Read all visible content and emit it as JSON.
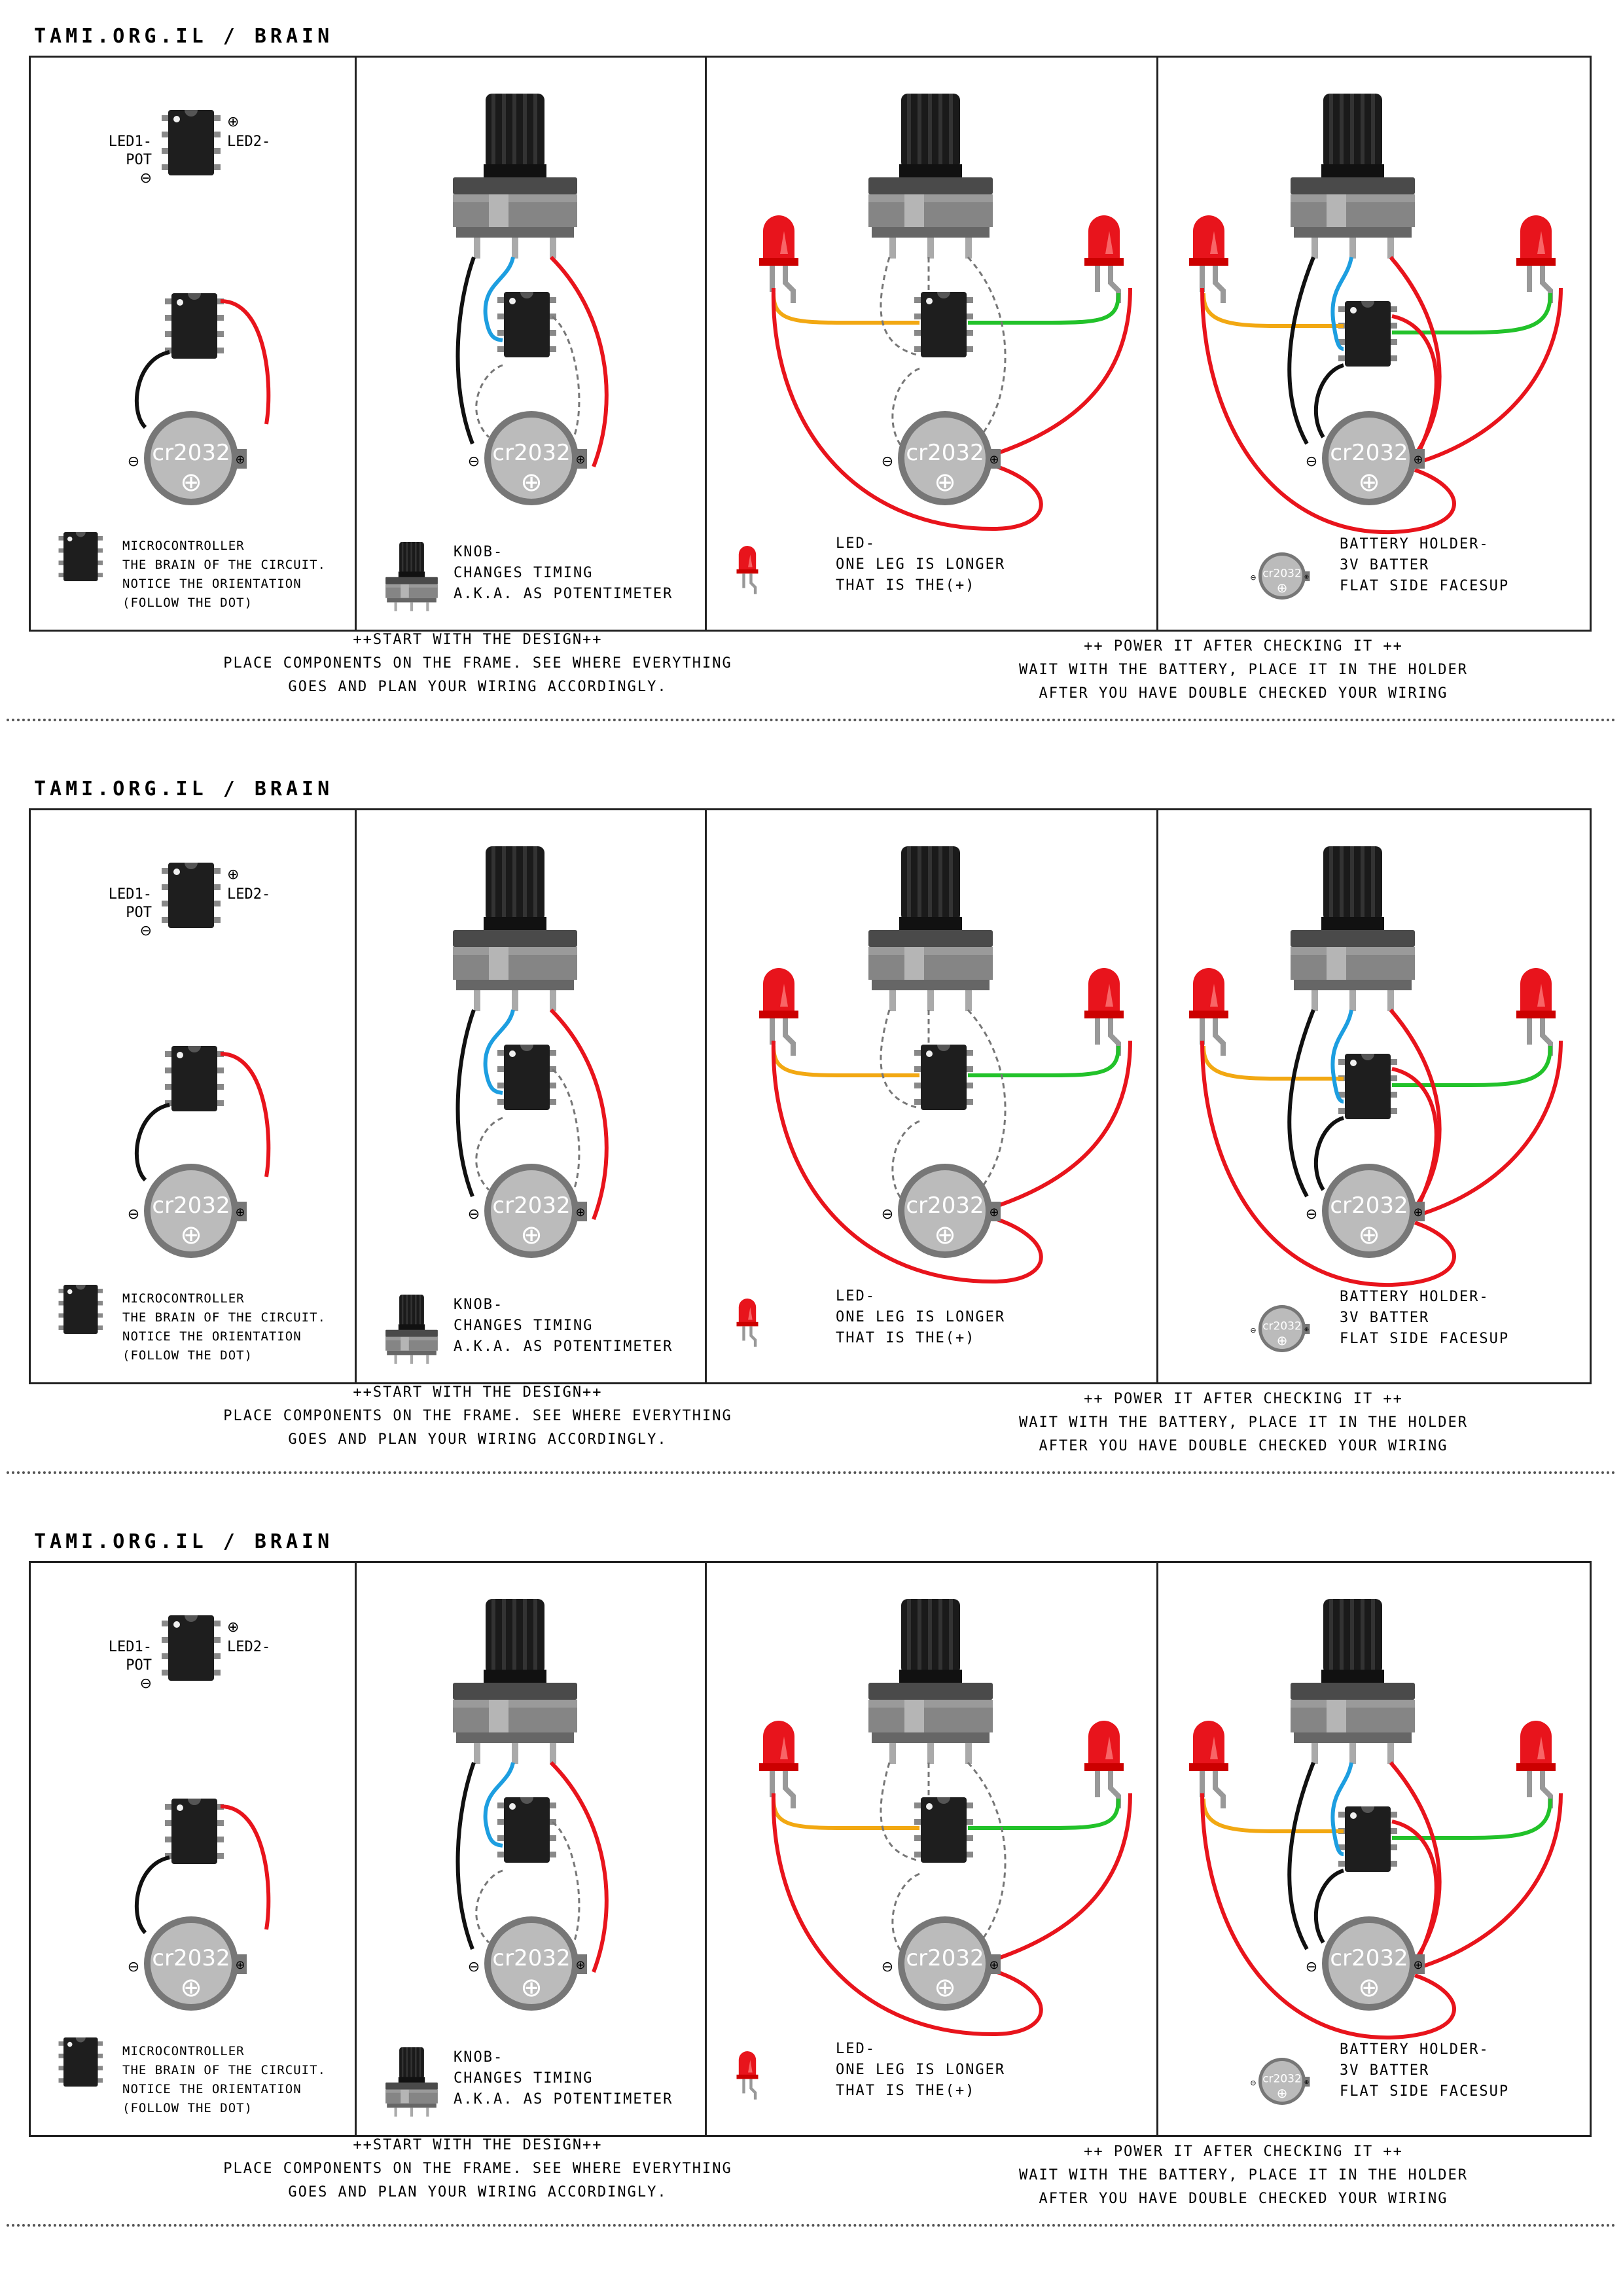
{
  "header": "TAMI.ORG.IL / BRAIN",
  "pinout": {
    "led1": "LED1-",
    "pot": "POT",
    "led2": "LED2-",
    "plus": "⊕",
    "minus": "⊖"
  },
  "battery": {
    "model": "cr2032",
    "plus": "⊕",
    "minus": "⊖"
  },
  "legends": {
    "micro": [
      "MICROCONTROLLER",
      "THE BRAIN OF THE CIRCUIT.",
      "NOTICE THE ORIENTATION",
      "(FOLLOW THE DOT)"
    ],
    "knob": [
      "KNOB-",
      "CHANGES TIMING",
      "A.K.A. AS POTENTIMETER"
    ],
    "led": [
      "LED-",
      "ONE LEG IS LONGER",
      "THAT IS THE(+)"
    ],
    "holder": [
      "BATTERY HOLDER-",
      "3V BATTER",
      "FLAT SIDE FACESUP"
    ]
  },
  "footer_left": [
    "++START WITH THE DESIGN++",
    "PLACE COMPONENTS ON THE FRAME.    SEE WHERE EVERYTHING",
    "GOES AND PLAN YOUR WIRING ACCORDINGLY."
  ],
  "footer_right": [
    "++ POWER IT AFTER CHECKING IT ++",
    "WAIT WITH THE BATTERY,  PLACE IT IN THE HOLDER",
    "AFTER YOU HAVE DOUBLE CHECKED YOUR WIRING"
  ],
  "colors": {
    "red": "#e8141c",
    "black": "#111111",
    "blue": "#1d9ee0",
    "green": "#22c22a",
    "orange": "#f2a812",
    "dashed": "#777777",
    "led": "#e8141c"
  }
}
